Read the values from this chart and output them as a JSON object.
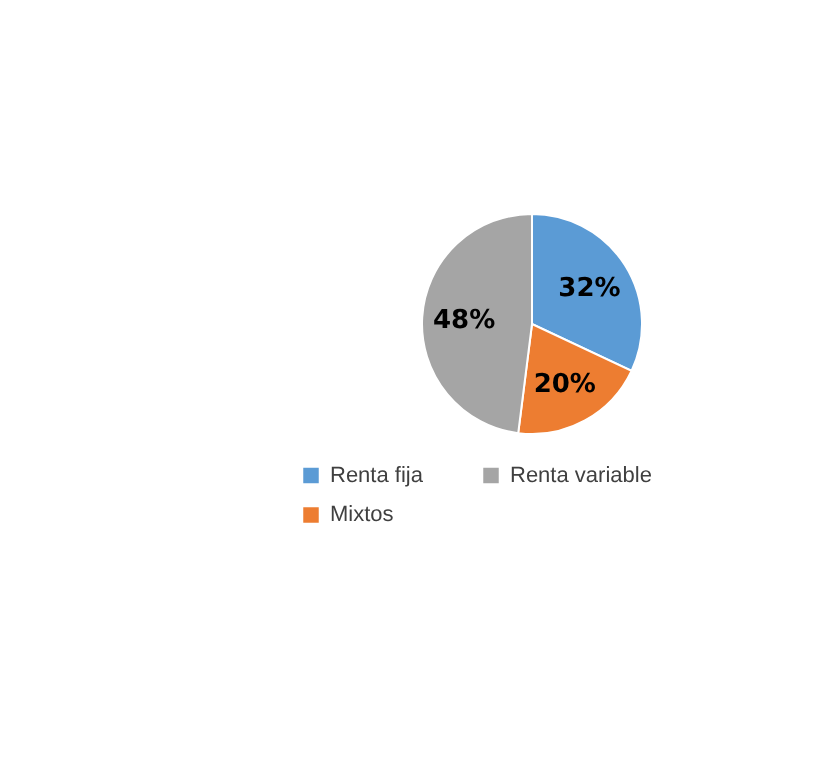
{
  "chart_data": {
    "type": "pie",
    "categories": [
      "Renta fija",
      "Mixtos",
      "Renta variable"
    ],
    "values": [
      32,
      20,
      48
    ],
    "colors": [
      "#5b9bd5",
      "#ed7d31",
      "#a5a5a5"
    ],
    "value_labels": [
      "32%",
      "20%",
      "48%"
    ],
    "legend": "bottom"
  }
}
